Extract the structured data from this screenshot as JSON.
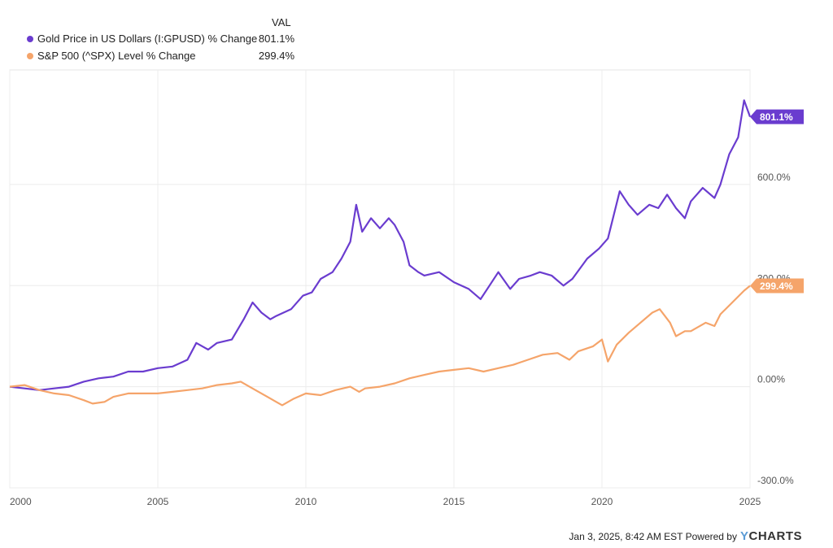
{
  "legend": {
    "header": "VAL",
    "items": [
      {
        "label": "Gold Price in US Dollars (I:GPUSD) % Change",
        "value": "801.1%",
        "color": "#6a3ccf"
      },
      {
        "label": "S&P 500 (^SPX) Level % Change",
        "value": "299.4%",
        "color": "#f5a46a"
      }
    ]
  },
  "footer": {
    "text": "Jan 3, 2025, 8:42 AM EST Powered by",
    "brand_mark": "Y",
    "brand_rest": "CHARTS"
  },
  "chart_data": {
    "type": "line",
    "xlim": [
      2000,
      2025
    ],
    "ylim": [
      -300,
      940
    ],
    "x_ticks": [
      2000,
      2005,
      2010,
      2015,
      2020,
      2025
    ],
    "x_tick_labels": [
      "2000",
      "2005",
      "2010",
      "2015",
      "2020",
      "2025"
    ],
    "y_ticks": [
      -300,
      0,
      300,
      600
    ],
    "y_tick_labels": [
      "-300.0%",
      "0.00%",
      "300.0%",
      "600.0%"
    ],
    "grid": true,
    "legend_position": "top-left",
    "series": [
      {
        "name": "Gold Price in US Dollars (I:GPUSD) % Change",
        "color": "#6a3ccf",
        "end_label": "801.1%",
        "points": [
          [
            2000.0,
            0
          ],
          [
            2000.5,
            -5
          ],
          [
            2001.0,
            -10
          ],
          [
            2001.5,
            -5
          ],
          [
            2002.0,
            0
          ],
          [
            2002.5,
            15
          ],
          [
            2003.0,
            25
          ],
          [
            2003.5,
            30
          ],
          [
            2004.0,
            45
          ],
          [
            2004.5,
            45
          ],
          [
            2005.0,
            55
          ],
          [
            2005.5,
            60
          ],
          [
            2006.0,
            80
          ],
          [
            2006.3,
            130
          ],
          [
            2006.7,
            110
          ],
          [
            2007.0,
            130
          ],
          [
            2007.5,
            140
          ],
          [
            2007.9,
            200
          ],
          [
            2008.2,
            250
          ],
          [
            2008.5,
            220
          ],
          [
            2008.8,
            200
          ],
          [
            2009.0,
            210
          ],
          [
            2009.5,
            230
          ],
          [
            2009.9,
            270
          ],
          [
            2010.2,
            280
          ],
          [
            2010.5,
            320
          ],
          [
            2010.9,
            340
          ],
          [
            2011.2,
            380
          ],
          [
            2011.5,
            430
          ],
          [
            2011.7,
            540
          ],
          [
            2011.9,
            460
          ],
          [
            2012.2,
            500
          ],
          [
            2012.5,
            470
          ],
          [
            2012.8,
            500
          ],
          [
            2013.0,
            480
          ],
          [
            2013.3,
            430
          ],
          [
            2013.5,
            360
          ],
          [
            2013.8,
            340
          ],
          [
            2014.0,
            330
          ],
          [
            2014.5,
            340
          ],
          [
            2015.0,
            310
          ],
          [
            2015.5,
            290
          ],
          [
            2015.9,
            260
          ],
          [
            2016.2,
            300
          ],
          [
            2016.5,
            340
          ],
          [
            2016.9,
            290
          ],
          [
            2017.2,
            320
          ],
          [
            2017.6,
            330
          ],
          [
            2017.9,
            340
          ],
          [
            2018.3,
            330
          ],
          [
            2018.7,
            300
          ],
          [
            2019.0,
            320
          ],
          [
            2019.5,
            380
          ],
          [
            2019.9,
            410
          ],
          [
            2020.2,
            440
          ],
          [
            2020.6,
            580
          ],
          [
            2020.9,
            540
          ],
          [
            2021.2,
            510
          ],
          [
            2021.6,
            540
          ],
          [
            2021.9,
            530
          ],
          [
            2022.2,
            570
          ],
          [
            2022.5,
            530
          ],
          [
            2022.8,
            500
          ],
          [
            2023.0,
            550
          ],
          [
            2023.4,
            590
          ],
          [
            2023.8,
            560
          ],
          [
            2024.0,
            600
          ],
          [
            2024.3,
            690
          ],
          [
            2024.6,
            740
          ],
          [
            2024.8,
            850
          ],
          [
            2025.0,
            801.1
          ]
        ]
      },
      {
        "name": "S&P 500 (^SPX) Level % Change",
        "color": "#f5a46a",
        "end_label": "299.4%",
        "points": [
          [
            2000.0,
            0
          ],
          [
            2000.5,
            5
          ],
          [
            2001.0,
            -10
          ],
          [
            2001.5,
            -20
          ],
          [
            2002.0,
            -25
          ],
          [
            2002.5,
            -40
          ],
          [
            2002.8,
            -50
          ],
          [
            2003.2,
            -45
          ],
          [
            2003.5,
            -30
          ],
          [
            2004.0,
            -20
          ],
          [
            2004.5,
            -20
          ],
          [
            2005.0,
            -20
          ],
          [
            2005.5,
            -15
          ],
          [
            2006.0,
            -10
          ],
          [
            2006.5,
            -5
          ],
          [
            2007.0,
            5
          ],
          [
            2007.5,
            10
          ],
          [
            2007.8,
            15
          ],
          [
            2008.3,
            -10
          ],
          [
            2008.7,
            -30
          ],
          [
            2009.0,
            -45
          ],
          [
            2009.2,
            -55
          ],
          [
            2009.6,
            -35
          ],
          [
            2010.0,
            -20
          ],
          [
            2010.5,
            -25
          ],
          [
            2011.0,
            -10
          ],
          [
            2011.5,
            0
          ],
          [
            2011.8,
            -15
          ],
          [
            2012.0,
            -5
          ],
          [
            2012.5,
            0
          ],
          [
            2013.0,
            10
          ],
          [
            2013.5,
            25
          ],
          [
            2014.0,
            35
          ],
          [
            2014.5,
            45
          ],
          [
            2015.0,
            50
          ],
          [
            2015.5,
            55
          ],
          [
            2016.0,
            45
          ],
          [
            2016.5,
            55
          ],
          [
            2017.0,
            65
          ],
          [
            2017.5,
            80
          ],
          [
            2018.0,
            95
          ],
          [
            2018.5,
            100
          ],
          [
            2018.9,
            80
          ],
          [
            2019.2,
            105
          ],
          [
            2019.7,
            120
          ],
          [
            2020.0,
            140
          ],
          [
            2020.2,
            75
          ],
          [
            2020.5,
            125
          ],
          [
            2020.9,
            160
          ],
          [
            2021.3,
            190
          ],
          [
            2021.7,
            220
          ],
          [
            2021.95,
            230
          ],
          [
            2022.3,
            190
          ],
          [
            2022.5,
            150
          ],
          [
            2022.8,
            165
          ],
          [
            2023.0,
            165
          ],
          [
            2023.5,
            190
          ],
          [
            2023.8,
            180
          ],
          [
            2024.0,
            215
          ],
          [
            2024.4,
            250
          ],
          [
            2024.8,
            285
          ],
          [
            2025.0,
            299.4
          ]
        ]
      }
    ]
  }
}
